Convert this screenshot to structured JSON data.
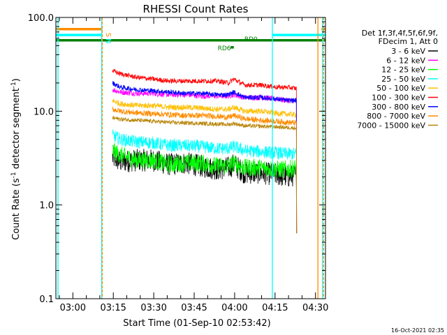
{
  "chart_data": {
    "type": "line",
    "title": "RHESSI Count Rates",
    "xlabel": "Start Time (01-Sep-10 02:53:42)",
    "ylabel_main": "Count Rate (s",
    "ylabel_sup1": "-1",
    "ylabel_mid": " detector segment",
    "ylabel_sup2": "-1",
    "ylabel_end": ")",
    "yscale": "log",
    "ylim": [
      0.1,
      100
    ],
    "xlim_minutes": [
      0,
      100
    ],
    "x_ticks": [
      {
        "label": "03:00",
        "minute": 6.3
      },
      {
        "label": "03:15",
        "minute": 21.3
      },
      {
        "label": "03:30",
        "minute": 36.3
      },
      {
        "label": "03:45",
        "minute": 51.3
      },
      {
        "label": "04:00",
        "minute": 66.3
      },
      {
        "label": "04:15",
        "minute": 81.3
      },
      {
        "label": "04:30",
        "minute": 96.3
      }
    ],
    "y_ticks": [
      {
        "label": "100.0",
        "value": 100
      },
      {
        "label": "10.0",
        "value": 10
      },
      {
        "label": "1.0",
        "value": 1
      },
      {
        "label": "0.1",
        "value": 0.1
      }
    ],
    "legend_header": [
      "Det 1f,3f,4f,5f,6f,9f,",
      "FDecim 1, Att 0"
    ],
    "legend_placement": "right",
    "data_start_minute": 21.0,
    "data_end_minute": 89.3,
    "series": [
      {
        "name": "3 - 6 keV",
        "color": "#000000",
        "points": [
          [
            21,
            3.2
          ],
          [
            24,
            2.9
          ],
          [
            30,
            3.0
          ],
          [
            36,
            3.0
          ],
          [
            42,
            2.7
          ],
          [
            48,
            2.8
          ],
          [
            54,
            2.6
          ],
          [
            60,
            2.4
          ],
          [
            64,
            2.5
          ],
          [
            66,
            2.7
          ],
          [
            70,
            2.2
          ],
          [
            76,
            2.2
          ],
          [
            82,
            2.1
          ],
          [
            86,
            2.0
          ],
          [
            89,
            2.1
          ]
        ]
      },
      {
        "name": "6 - 12 keV",
        "color": "#ff00ff",
        "points": [
          [
            21,
            17
          ],
          [
            24,
            16
          ],
          [
            30,
            15.5
          ],
          [
            36,
            15.5
          ],
          [
            42,
            15
          ],
          [
            48,
            15
          ],
          [
            54,
            14.5
          ],
          [
            60,
            14.5
          ],
          [
            64,
            14.5
          ],
          [
            66,
            15
          ],
          [
            70,
            14
          ],
          [
            76,
            14
          ],
          [
            82,
            13.5
          ],
          [
            86,
            13
          ],
          [
            89,
            13
          ]
        ]
      },
      {
        "name": "12 - 25 keV",
        "color": "#00ff00",
        "points": [
          [
            21,
            3.8
          ],
          [
            24,
            3.4
          ],
          [
            30,
            3.0
          ],
          [
            36,
            3.0
          ],
          [
            42,
            2.7
          ],
          [
            48,
            2.8
          ],
          [
            54,
            2.8
          ],
          [
            60,
            2.6
          ],
          [
            64,
            2.6
          ],
          [
            66,
            2.8
          ],
          [
            70,
            2.5
          ],
          [
            76,
            2.5
          ],
          [
            82,
            2.4
          ],
          [
            86,
            2.4
          ],
          [
            89,
            2.5
          ]
        ]
      },
      {
        "name": "25 - 50 keV",
        "color": "#00ffff",
        "points": [
          [
            21,
            5.5
          ],
          [
            24,
            5.0
          ],
          [
            30,
            4.7
          ],
          [
            36,
            4.6
          ],
          [
            42,
            4.3
          ],
          [
            48,
            4.3
          ],
          [
            54,
            4.2
          ],
          [
            60,
            4.0
          ],
          [
            64,
            4.0
          ],
          [
            66,
            4.2
          ],
          [
            70,
            3.8
          ],
          [
            76,
            3.7
          ],
          [
            82,
            3.6
          ],
          [
            86,
            3.5
          ],
          [
            89,
            3.5
          ]
        ]
      },
      {
        "name": "50 - 100 keV",
        "color": "#ffbf00",
        "points": [
          [
            21,
            13
          ],
          [
            24,
            12
          ],
          [
            30,
            11.5
          ],
          [
            36,
            11.5
          ],
          [
            42,
            11
          ],
          [
            48,
            11
          ],
          [
            54,
            10.8
          ],
          [
            60,
            10.5
          ],
          [
            64,
            10.5
          ],
          [
            66,
            11
          ],
          [
            70,
            10
          ],
          [
            76,
            10
          ],
          [
            82,
            9.5
          ],
          [
            86,
            9.3
          ],
          [
            89,
            9.2
          ]
        ]
      },
      {
        "name": "100 - 300 keV",
        "color": "#ff0000",
        "points": [
          [
            21,
            27
          ],
          [
            24,
            25
          ],
          [
            30,
            23
          ],
          [
            36,
            22
          ],
          [
            42,
            21
          ],
          [
            48,
            21
          ],
          [
            54,
            21
          ],
          [
            60,
            21
          ],
          [
            64,
            20
          ],
          [
            66,
            22
          ],
          [
            70,
            19
          ],
          [
            76,
            19
          ],
          [
            82,
            18
          ],
          [
            86,
            18
          ],
          [
            89,
            17.5
          ]
        ]
      },
      {
        "name": "300 - 800 keV",
        "color": "#0000ff",
        "points": [
          [
            21,
            20
          ],
          [
            24,
            18
          ],
          [
            30,
            17
          ],
          [
            36,
            16.5
          ],
          [
            42,
            16
          ],
          [
            48,
            15.5
          ],
          [
            54,
            15.5
          ],
          [
            60,
            15
          ],
          [
            64,
            15
          ],
          [
            66,
            16
          ],
          [
            70,
            14
          ],
          [
            76,
            14
          ],
          [
            82,
            13.5
          ],
          [
            86,
            13
          ],
          [
            89,
            13
          ]
        ]
      },
      {
        "name": "800 - 7000 keV",
        "color": "#ff8c00",
        "points": [
          [
            21,
            10.5
          ],
          [
            24,
            10
          ],
          [
            30,
            9.6
          ],
          [
            36,
            9.4
          ],
          [
            42,
            9.2
          ],
          [
            48,
            9.0
          ],
          [
            54,
            9.0
          ],
          [
            60,
            8.8
          ],
          [
            64,
            8.6
          ],
          [
            66,
            9.0
          ],
          [
            70,
            8.3
          ],
          [
            76,
            8.0
          ],
          [
            82,
            7.8
          ],
          [
            86,
            7.6
          ],
          [
            89,
            7.5
          ]
        ]
      },
      {
        "name": "7000 - 15000 keV",
        "color": "#b8860b",
        "points": [
          [
            21,
            8.5
          ],
          [
            24,
            8.2
          ],
          [
            30,
            8.0
          ],
          [
            36,
            7.8
          ],
          [
            42,
            7.6
          ],
          [
            48,
            7.5
          ],
          [
            54,
            7.4
          ],
          [
            60,
            7.3
          ],
          [
            64,
            7.2
          ],
          [
            66,
            7.4
          ],
          [
            70,
            7.0
          ],
          [
            76,
            6.9
          ],
          [
            82,
            6.8
          ],
          [
            86,
            6.7
          ],
          [
            89,
            6.6
          ]
        ]
      }
    ],
    "flags": [
      {
        "label": "S",
        "color": "#ff8c00",
        "value": 75,
        "segments": [
          [
            0,
            17.2
          ],
          [
            98.5,
            100
          ]
        ]
      },
      {
        "name": "N",
        "label": "N",
        "color": "#00ffff",
        "value": 65,
        "segments": [
          [
            0,
            17.2
          ],
          [
            80.3,
            100
          ]
        ]
      },
      {
        "label": "RD0",
        "color": "#008000",
        "value": 57,
        "segments": [
          [
            0,
            100
          ]
        ]
      },
      {
        "label": "RD6",
        "color": "#008000",
        "value": 48,
        "segments": [
          [
            64.8,
            66.0
          ]
        ]
      }
    ],
    "vertical_markers": [
      {
        "color": "#00ffff",
        "minute": 0.8
      },
      {
        "color": "#00ffff",
        "minute": 17.0
      },
      {
        "color": "#ff8c00",
        "minute": 17.2,
        "dashed": true
      },
      {
        "color": "#00ffff",
        "minute": 80.3
      },
      {
        "color": "#ff8c00",
        "minute": 97.2
      },
      {
        "color": "#00ffff",
        "minute": 98.9
      },
      {
        "color": "#ff8c00",
        "minute": 99.3,
        "dashed": true
      }
    ],
    "timestamp": "16-Oct-2021 02:35"
  }
}
